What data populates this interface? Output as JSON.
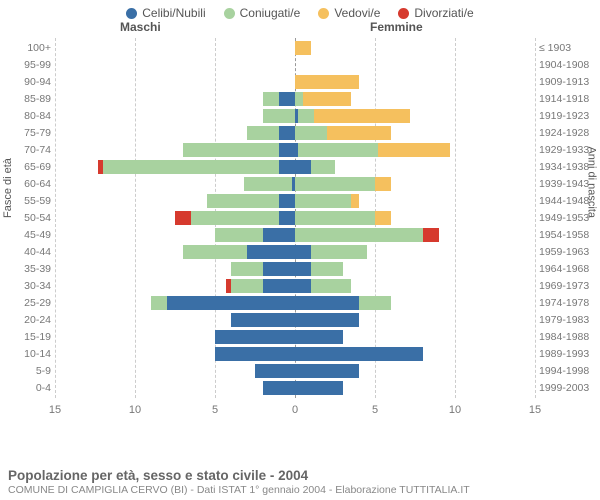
{
  "legend": {
    "items": [
      {
        "label": "Celibi/Nubili",
        "color": "#3a6fa6"
      },
      {
        "label": "Coniugati/e",
        "color": "#a8d29f"
      },
      {
        "label": "Vedovi/e",
        "color": "#f5c05e"
      },
      {
        "label": "Divorziati/e",
        "color": "#d63a2e"
      }
    ]
  },
  "headers": {
    "male": "Maschi",
    "female": "Femmine"
  },
  "axis_left_label": "Fasce di età",
  "axis_right_label": "Anni di nascita",
  "footer": {
    "title": "Popolazione per età, sesso e stato civile - 2004",
    "subtitle": "COMUNE DI CAMPIGLIA CERVO (BI) - Dati ISTAT 1° gennaio 2004 - Elaborazione TUTTITALIA.IT"
  },
  "xaxis": {
    "min": -15,
    "max": 15,
    "ticks": [
      -15,
      -10,
      -5,
      0,
      5,
      10,
      15
    ],
    "labels": [
      "15",
      "10",
      "5",
      "0",
      "5",
      "10",
      "15"
    ]
  },
  "colors": {
    "celibi": "#3a6fa6",
    "coniugati": "#a8d29f",
    "vedovi": "#f5c05e",
    "divorziati": "#d63a2e",
    "grid": "#cccccc",
    "center": "#999999"
  },
  "rows": [
    {
      "age": "100+",
      "birth": "≤ 1903",
      "m": {
        "c": 0,
        "k": 0,
        "v": 0,
        "d": 0
      },
      "f": {
        "c": 0,
        "k": 0,
        "v": 1,
        "d": 0
      }
    },
    {
      "age": "95-99",
      "birth": "1904-1908",
      "m": {
        "c": 0,
        "k": 0,
        "v": 0,
        "d": 0
      },
      "f": {
        "c": 0,
        "k": 0,
        "v": 0,
        "d": 0
      }
    },
    {
      "age": "90-94",
      "birth": "1909-1913",
      "m": {
        "c": 0,
        "k": 0,
        "v": 0,
        "d": 0
      },
      "f": {
        "c": 0,
        "k": 0,
        "v": 4,
        "d": 0
      }
    },
    {
      "age": "85-89",
      "birth": "1914-1918",
      "m": {
        "c": 1,
        "k": 1,
        "v": 0,
        "d": 0
      },
      "f": {
        "c": 0,
        "k": 0.5,
        "v": 3,
        "d": 0
      }
    },
    {
      "age": "80-84",
      "birth": "1919-1923",
      "m": {
        "c": 0,
        "k": 2,
        "v": 0,
        "d": 0
      },
      "f": {
        "c": 0.2,
        "k": 1,
        "v": 6,
        "d": 0
      }
    },
    {
      "age": "75-79",
      "birth": "1924-1928",
      "m": {
        "c": 1,
        "k": 2,
        "v": 0,
        "d": 0
      },
      "f": {
        "c": 0,
        "k": 2,
        "v": 4,
        "d": 0
      }
    },
    {
      "age": "70-74",
      "birth": "1929-1933",
      "m": {
        "c": 1,
        "k": 6,
        "v": 0,
        "d": 0
      },
      "f": {
        "c": 0.2,
        "k": 5,
        "v": 4.5,
        "d": 0
      }
    },
    {
      "age": "65-69",
      "birth": "1934-1938",
      "m": {
        "c": 1,
        "k": 11,
        "v": 0,
        "d": 0.3
      },
      "f": {
        "c": 1,
        "k": 1.5,
        "v": 0,
        "d": 0
      }
    },
    {
      "age": "60-64",
      "birth": "1939-1943",
      "m": {
        "c": 0.2,
        "k": 3,
        "v": 0,
        "d": 0
      },
      "f": {
        "c": 0,
        "k": 5,
        "v": 1,
        "d": 0
      }
    },
    {
      "age": "55-59",
      "birth": "1944-1948",
      "m": {
        "c": 1,
        "k": 4.5,
        "v": 0,
        "d": 0
      },
      "f": {
        "c": 0,
        "k": 3.5,
        "v": 0.5,
        "d": 0
      }
    },
    {
      "age": "50-54",
      "birth": "1949-1953",
      "m": {
        "c": 1,
        "k": 5.5,
        "v": 0,
        "d": 1
      },
      "f": {
        "c": 0,
        "k": 5,
        "v": 1,
        "d": 0
      }
    },
    {
      "age": "45-49",
      "birth": "1954-1958",
      "m": {
        "c": 2,
        "k": 3,
        "v": 0,
        "d": 0
      },
      "f": {
        "c": 0,
        "k": 8,
        "v": 0,
        "d": 1
      }
    },
    {
      "age": "40-44",
      "birth": "1959-1963",
      "m": {
        "c": 3,
        "k": 4,
        "v": 0,
        "d": 0
      },
      "f": {
        "c": 1,
        "k": 3.5,
        "v": 0,
        "d": 0
      }
    },
    {
      "age": "35-39",
      "birth": "1964-1968",
      "m": {
        "c": 2,
        "k": 2,
        "v": 0,
        "d": 0
      },
      "f": {
        "c": 1,
        "k": 2,
        "v": 0,
        "d": 0
      }
    },
    {
      "age": "30-34",
      "birth": "1969-1973",
      "m": {
        "c": 2,
        "k": 2,
        "v": 0,
        "d": 0.3
      },
      "f": {
        "c": 1,
        "k": 2.5,
        "v": 0,
        "d": 0
      }
    },
    {
      "age": "25-29",
      "birth": "1974-1978",
      "m": {
        "c": 8,
        "k": 1,
        "v": 0,
        "d": 0
      },
      "f": {
        "c": 4,
        "k": 2,
        "v": 0,
        "d": 0
      }
    },
    {
      "age": "20-24",
      "birth": "1979-1983",
      "m": {
        "c": 4,
        "k": 0,
        "v": 0,
        "d": 0
      },
      "f": {
        "c": 4,
        "k": 0,
        "v": 0,
        "d": 0
      }
    },
    {
      "age": "15-19",
      "birth": "1984-1988",
      "m": {
        "c": 5,
        "k": 0,
        "v": 0,
        "d": 0
      },
      "f": {
        "c": 3,
        "k": 0,
        "v": 0,
        "d": 0
      }
    },
    {
      "age": "10-14",
      "birth": "1989-1993",
      "m": {
        "c": 5,
        "k": 0,
        "v": 0,
        "d": 0
      },
      "f": {
        "c": 8,
        "k": 0,
        "v": 0,
        "d": 0
      }
    },
    {
      "age": "5-9",
      "birth": "1994-1998",
      "m": {
        "c": 2.5,
        "k": 0,
        "v": 0,
        "d": 0
      },
      "f": {
        "c": 4,
        "k": 0,
        "v": 0,
        "d": 0
      }
    },
    {
      "age": "0-4",
      "birth": "1999-2003",
      "m": {
        "c": 2,
        "k": 0,
        "v": 0,
        "d": 0
      },
      "f": {
        "c": 3,
        "k": 0,
        "v": 0,
        "d": 0
      }
    }
  ]
}
